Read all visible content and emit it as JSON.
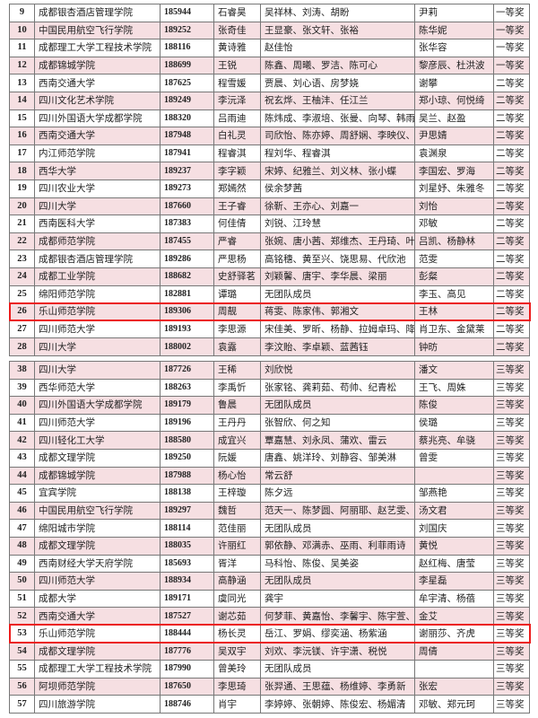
{
  "highlight_color": "#ec1c1c",
  "row_tint": "#f6dfe2",
  "tables": [
    {
      "rows": [
        {
          "no": "9",
          "school": "成都银杏酒店管理学院",
          "id": "185944",
          "leader": "石睿昊",
          "team": "吴祥林、刘涛、胡盼",
          "advisor": "尹莉",
          "award": "一等奖"
        },
        {
          "no": "10",
          "school": "中国民用航空飞行学院",
          "id": "189252",
          "leader": "张奇佳",
          "team": "王显豪、张文轩、张裕",
          "advisor": "陈华妮",
          "award": "一等奖"
        },
        {
          "no": "11",
          "school": "成都理工大学工程技术学院",
          "id": "188116",
          "leader": "黄诗雅",
          "team": "赵佳怡",
          "advisor": "张华容",
          "award": "一等奖"
        },
        {
          "no": "12",
          "school": "成都锦城学院",
          "id": "188699",
          "leader": "王锐",
          "team": "陈鑫、周曦、罗洁、陈可心",
          "advisor": "黎彦辰、杜洪波",
          "award": "一等奖"
        },
        {
          "no": "13",
          "school": "西南交通大学",
          "id": "187625",
          "leader": "程雪媛",
          "team": "贾晨、刘心语、房梦娆",
          "advisor": "谢攀",
          "award": "二等奖"
        },
        {
          "no": "14",
          "school": "四川文化艺术学院",
          "id": "189249",
          "leader": "李沅泽",
          "team": "祝玄烨、王柚沣、任江兰",
          "advisor": "郑小琼、何悦绮",
          "award": "二等奖"
        },
        {
          "no": "15",
          "school": "四川外国语大学成都学院",
          "id": "188320",
          "leader": "吕雨迪",
          "team": "陈炜成、李淑培、张曼、向琴、韩雨彤",
          "advisor": "吴兰、赵盈",
          "award": "二等奖"
        },
        {
          "no": "16",
          "school": "西南交通大学",
          "id": "187948",
          "leader": "白礼灵",
          "team": "司欣怡、陈亦婷、周舒娴、李映仪、胡惠涵",
          "advisor": "尹思婧",
          "award": "二等奖"
        },
        {
          "no": "17",
          "school": "内江师范学院",
          "id": "187941",
          "leader": "程睿淇",
          "team": "程刘华、程睿淇",
          "advisor": "袁渊泉",
          "award": "二等奖"
        },
        {
          "no": "18",
          "school": "西华大学",
          "id": "189237",
          "leader": "李字颖",
          "team": "宋婷、纪雅兰、刘义林、张小蝶",
          "advisor": "李国宏、罗海",
          "award": "二等奖"
        },
        {
          "no": "19",
          "school": "四川农业大学",
          "id": "189273",
          "leader": "郑嫣然",
          "team": "侯余梦茜",
          "advisor": "刘星妤、朱雅冬",
          "award": "二等奖"
        },
        {
          "no": "20",
          "school": "四川大学",
          "id": "187660",
          "leader": "王子睿",
          "team": "徐靳、王亦心、刘嘉一",
          "advisor": "刘怡",
          "award": "二等奖"
        },
        {
          "no": "21",
          "school": "西南医科大学",
          "id": "187383",
          "leader": "何佳倩",
          "team": "刘锐、江玲慧",
          "advisor": "邓敏",
          "award": "二等奖"
        },
        {
          "no": "22",
          "school": "成都师范学院",
          "id": "187455",
          "leader": "严睿",
          "team": "张婉、唐小茜、郑维杰、王丹琦、叶梦竹",
          "advisor": "吕凯、杨静林",
          "award": "二等奖"
        },
        {
          "no": "23",
          "school": "成都银杏酒店管理学院",
          "id": "189286",
          "leader": "严思杨",
          "team": "高铭穗、黄至兴、饶思易、代欣池",
          "advisor": "范雯",
          "award": "二等奖"
        },
        {
          "no": "24",
          "school": "成都工业学院",
          "id": "188682",
          "leader": "史舒驿茗",
          "team": "刘颖馨、唐宇、李华晨、梁丽",
          "advisor": "彭粲",
          "award": "二等奖"
        },
        {
          "no": "25",
          "school": "绵阳师范学院",
          "id": "182881",
          "leader": "谭璐",
          "team": "无团队成员",
          "advisor": "李玉、高见",
          "award": "二等奖"
        },
        {
          "no": "26",
          "school": "乐山师范学院",
          "id": "189306",
          "leader": "周靓",
          "team": "蒋雯、陈家伟、郭湘文",
          "advisor": "王林",
          "award": "二等奖",
          "highlighted": true
        },
        {
          "no": "27",
          "school": "四川师范大学",
          "id": "189193",
          "leader": "李思源",
          "team": "宋佳美、罗昕、杨静、拉姆卓玛、降拥拉姆",
          "advisor": "肖卫东、金黛莱",
          "award": "二等奖"
        },
        {
          "no": "28",
          "school": "四川大学",
          "id": "188002",
          "leader": "袁露",
          "team": "李汶貽、李卓颖、蓝茜钰",
          "advisor": "钟昉",
          "award": "二等奖"
        }
      ]
    },
    {
      "rows": [
        {
          "no": "38",
          "school": "四川大学",
          "id": "187726",
          "leader": "王稀",
          "team": "刘欣悦",
          "advisor": "潘文",
          "award": "三等奖"
        },
        {
          "no": "39",
          "school": "西华师范大学",
          "id": "188263",
          "leader": "李禹忻",
          "team": "张家铭、龚莉茹、苟帅、纪青松",
          "advisor": "王飞、周姝",
          "award": "三等奖"
        },
        {
          "no": "40",
          "school": "四川外国语大学成都学院",
          "id": "189179",
          "leader": "鲁晨",
          "team": "无团队成员",
          "advisor": "陈俊",
          "award": "三等奖"
        },
        {
          "no": "41",
          "school": "四川师范大学",
          "id": "189196",
          "leader": "王丹丹",
          "team": "张智欣、何之知",
          "advisor": "侯璐",
          "award": "三等奖"
        },
        {
          "no": "42",
          "school": "四川轻化工大学",
          "id": "188580",
          "leader": "成宜兴",
          "team": "覃嘉慧、刘永凤、蒲欢、雷云",
          "advisor": "蔡兆亮、牟骁",
          "award": "三等奖"
        },
        {
          "no": "43",
          "school": "成都文理学院",
          "id": "189250",
          "leader": "阮媛",
          "team": "唐鑫、姚洋玲、刘静容、邹美淋",
          "advisor": "曾雯",
          "award": "三等奖"
        },
        {
          "no": "44",
          "school": "成都锦城学院",
          "id": "187988",
          "leader": "杨心怡",
          "team": "常云舒",
          "advisor": "",
          "award": "三等奖"
        },
        {
          "no": "45",
          "school": "宜宾学院",
          "id": "188138",
          "leader": "王梓璇",
          "team": "陈夕远",
          "advisor": "邹燕艳",
          "award": "三等奖"
        },
        {
          "no": "46",
          "school": "中国民用航空飞行学院",
          "id": "189297",
          "leader": "魏哲",
          "team": "范天一、陈梦圆、阿丽耶、赵艺雯、肖静怡",
          "advisor": "汤文君",
          "award": "三等奖"
        },
        {
          "no": "47",
          "school": "绵阳城市学院",
          "id": "188114",
          "leader": "范佳丽",
          "team": "无团队成员",
          "advisor": "刘国庆",
          "award": "三等奖"
        },
        {
          "no": "48",
          "school": "成都文理学院",
          "id": "188035",
          "leader": "许丽红",
          "team": "郭依静、邓满赤、巫雨、利菲雨诗",
          "advisor": "黄悦",
          "award": "三等奖"
        },
        {
          "no": "49",
          "school": "西南财经大学天府学院",
          "id": "185693",
          "leader": "胥洋",
          "team": "马科怡、陈俊、吴美姿",
          "advisor": "赵红梅、唐莹",
          "award": "三等奖"
        },
        {
          "no": "50",
          "school": "四川师范大学",
          "id": "188934",
          "leader": "高静涵",
          "team": "无团队成员",
          "advisor": "李星磊",
          "award": "三等奖"
        },
        {
          "no": "51",
          "school": "成都大学",
          "id": "189171",
          "leader": "虞同光",
          "team": "龚宇",
          "advisor": "牟宇清、杨蓓",
          "award": "三等奖"
        },
        {
          "no": "52",
          "school": "西南交通大学",
          "id": "187527",
          "leader": "谢芯茹",
          "team": "何梦菲、黄嘉怡、李馨宇、陈宇萱、苟欣茹",
          "advisor": "金艾",
          "award": "三等奖"
        },
        {
          "no": "53",
          "school": "乐山师范学院",
          "id": "188444",
          "leader": "杨长灵",
          "team": "岳江、罗娟、缪奕涵、杨紫涵",
          "advisor": "谢丽莎、齐虎",
          "award": "三等奖",
          "highlighted": true
        },
        {
          "no": "54",
          "school": "成都文理学院",
          "id": "187776",
          "leader": "吴双宇",
          "team": "刘欢、李沅镁、许宇潇、税悦",
          "advisor": "周倩",
          "award": "三等奖"
        },
        {
          "no": "55",
          "school": "成都理工大学工程技术学院",
          "id": "187990",
          "leader": "曾美玲",
          "team": "无团队成员",
          "advisor": "",
          "award": "三等奖"
        },
        {
          "no": "56",
          "school": "阿坝师范学院",
          "id": "187650",
          "leader": "李思琦",
          "team": "张羿通、王思蕴、杨维婷、李勇新",
          "advisor": "张宏",
          "award": "三等奖"
        },
        {
          "no": "57",
          "school": "四川旅游学院",
          "id": "188746",
          "leader": "肖宇",
          "team": "李婷婷、张朝婷、陈俊宏、杨媚清",
          "advisor": "邓敏、郑元珂",
          "award": "三等奖"
        }
      ]
    }
  ]
}
